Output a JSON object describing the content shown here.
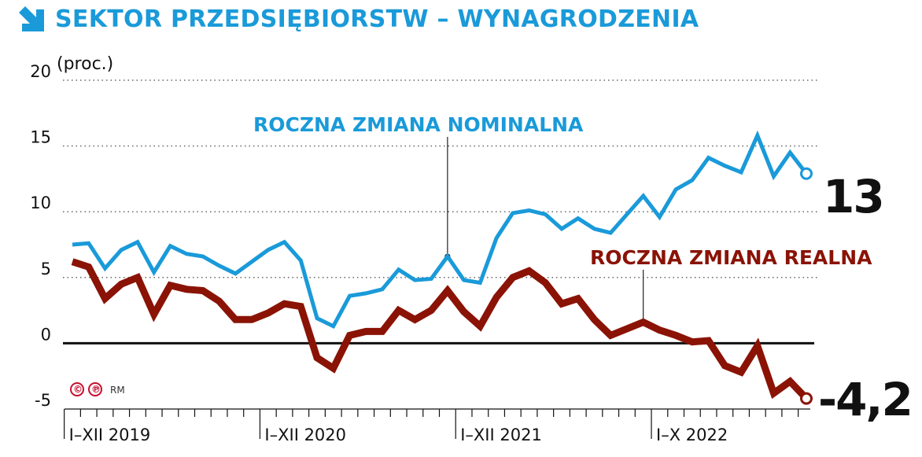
{
  "title": "SEKTOR PRZEDSIĘBIORSTW – WYNAGRODZENIA",
  "colors": {
    "nominal": "#1a9ad9",
    "real": "#8a1306",
    "title": "#1a9ad9",
    "zero": "#111111",
    "grid": "#666666",
    "credit": "#c8102e"
  },
  "icons": {
    "title": "arrow-down-right-icon",
    "copyright": "copyright-icon",
    "phonogram": "phonogram-icon"
  },
  "credit": {
    "copyright": "©",
    "phonogram": "℗",
    "author": "RM"
  },
  "chart_data": {
    "type": "line",
    "title": "SEKTOR PRZEDSIĘBIORSTW – WYNAGRODZENIA",
    "ylabel": "(proc.)",
    "ylim": [
      -5,
      20
    ],
    "yticks": [
      -5,
      0,
      5,
      10,
      15,
      20
    ],
    "grid": "dotted horizontal lines at 5, 10, 15, 20",
    "xlabels": [
      "I–XII 2019",
      "I–XII 2020",
      "I–XII 2021",
      "I–X 2022"
    ],
    "period_count": 46,
    "label_positions": [
      0,
      12,
      24,
      36
    ],
    "series": [
      {
        "name": "ROCZNA ZMIANA NOMINALNA",
        "end_label": "13",
        "values": [
          7.5,
          7.6,
          5.7,
          7.1,
          7.7,
          5.4,
          7.4,
          6.8,
          6.6,
          5.9,
          5.3,
          6.2,
          7.1,
          7.7,
          6.3,
          1.9,
          1.3,
          3.6,
          3.8,
          4.1,
          5.6,
          4.8,
          4.9,
          6.6,
          4.8,
          4.6,
          8.0,
          9.9,
          10.1,
          9.8,
          8.7,
          9.5,
          8.7,
          8.4,
          9.8,
          11.2,
          9.6,
          11.7,
          12.4,
          14.1,
          13.5,
          13.0,
          15.8,
          12.7,
          14.5,
          12.9
        ]
      },
      {
        "name": "ROCZNA ZMIANA REALNA",
        "end_label": "-4,2",
        "values": [
          6.2,
          5.8,
          3.4,
          4.5,
          5.0,
          2.2,
          4.4,
          4.1,
          4.0,
          3.2,
          1.8,
          1.8,
          2.3,
          3.0,
          2.8,
          -1.1,
          -1.9,
          0.6,
          0.9,
          0.9,
          2.5,
          1.8,
          2.5,
          4.0,
          2.4,
          1.3,
          3.5,
          5.0,
          5.5,
          4.6,
          3.0,
          3.4,
          1.8,
          0.6,
          1.1,
          1.6,
          1.0,
          0.6,
          0.1,
          0.2,
          -1.7,
          -2.2,
          -0.2,
          -3.8,
          -2.9,
          -4.2
        ]
      }
    ]
  }
}
